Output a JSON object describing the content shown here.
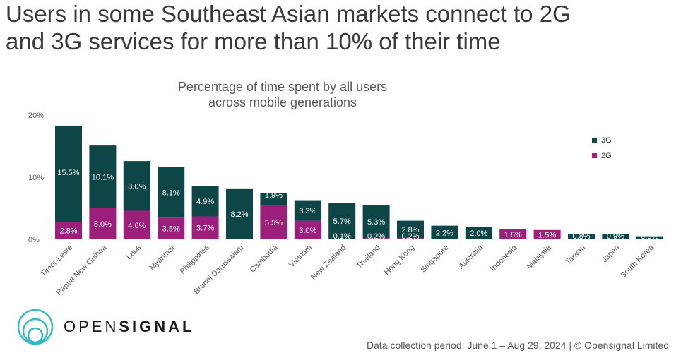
{
  "headline": {
    "line1": "Users in some Southeast Asian markets connect to 2G",
    "line2": "and 3G services for more than 10% of their time"
  },
  "chart_data": {
    "type": "bar",
    "stacked": true,
    "title_line1": "Percentage of time spent by all users",
    "title_line2": "across mobile generations",
    "categories": [
      "Timor-Leste",
      "Papua New Guinea",
      "Laos",
      "Myanmar",
      "Philippines",
      "Brunei Darussalam",
      "Cambodia",
      "Vietnam",
      "New Zealand",
      "Thailand",
      "Hong Kong",
      "Singapore",
      "Australia",
      "Indonesia",
      "Malaysia",
      "Taiwan",
      "Japan",
      "South Korea"
    ],
    "series": [
      {
        "name": "2G",
        "color": "#9c1f7c",
        "values": [
          2.8,
          5.0,
          4.6,
          3.5,
          3.7,
          0,
          5.5,
          3.0,
          0.1,
          0.2,
          0.2,
          0,
          0,
          1.6,
          1.5,
          0,
          0,
          0
        ],
        "labels": [
          "2.8%",
          "5.0%",
          "4.6%",
          "3.5%",
          "3.7%",
          "",
          "5.5%",
          "3.0%",
          "0.1%",
          "0.2%",
          "0.2%",
          "",
          "",
          "1.6%",
          "1.5%",
          "",
          "",
          ""
        ]
      },
      {
        "name": "3G",
        "color": "#0e4546",
        "values": [
          15.5,
          10.1,
          8.0,
          8.1,
          4.9,
          8.2,
          1.9,
          3.3,
          5.7,
          5.3,
          2.8,
          2.2,
          2.0,
          0,
          0,
          0.8,
          0.9,
          0.5
        ],
        "labels": [
          "15.5%",
          "10.1%",
          "8.0%",
          "8.1%",
          "4.9%",
          "8.2%",
          "1.9%",
          "3.3%",
          "5.7%",
          "5.3%",
          "2.8%",
          "2.2%",
          "2.0%",
          "",
          "",
          "0.8%",
          "0.9%",
          "0.5%"
        ]
      }
    ],
    "yticks": [
      0,
      10,
      20
    ],
    "ytick_labels": [
      "0%",
      "10%",
      "20%"
    ],
    "ylim": [
      0,
      20
    ],
    "legend_position": "right",
    "legend": [
      "3G",
      "2G"
    ]
  },
  "brand": {
    "name_light": "OPEN",
    "name_bold": "SIGNAL"
  },
  "footer": "Data collection period: June 1 – Aug 29, 2024 | © Opensignal Limited"
}
